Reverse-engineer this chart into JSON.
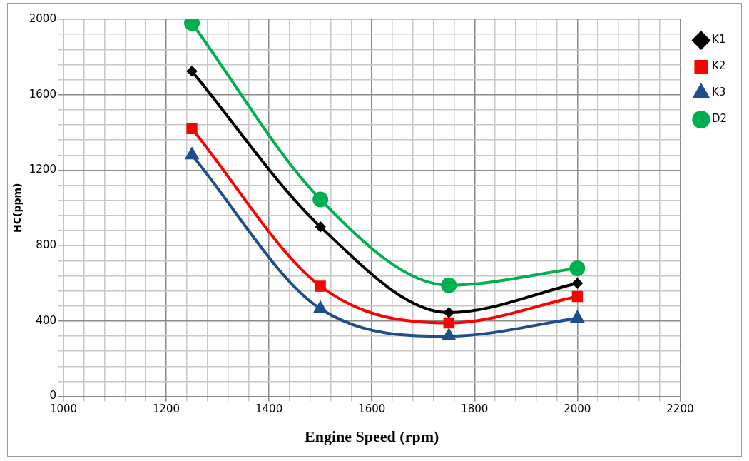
{
  "chart_data": {
    "type": "line",
    "xlabel": "Engine Speed (rpm)",
    "ylabel": "HC(ppm)",
    "x": [
      1250,
      1500,
      1750,
      2000
    ],
    "xlim": [
      1000,
      2200
    ],
    "xticks": [
      1000,
      {
        "value": 1040,
        "label": null
      },
      {
        "value": 1080,
        "label": null
      },
      {
        "value": 1120,
        "label": null
      },
      {
        "value": 1160,
        "label": null
      },
      1200,
      {
        "value": 1240,
        "label": null
      },
      {
        "value": 1280,
        "label": null
      },
      {
        "value": 1320,
        "label": null
      },
      {
        "value": 1360,
        "label": null
      },
      1400,
      {
        "value": 1440,
        "label": null
      },
      {
        "value": 1480,
        "label": null
      },
      {
        "value": 1520,
        "label": null
      },
      {
        "value": 1560,
        "label": null
      },
      1600,
      {
        "value": 1640,
        "label": null
      },
      {
        "value": 1680,
        "label": null
      },
      {
        "value": 1720,
        "label": null
      },
      {
        "value": 1760,
        "label": null
      },
      1800,
      {
        "value": 1840,
        "label": null
      },
      {
        "value": 1880,
        "label": null
      },
      {
        "value": 1920,
        "label": null
      },
      {
        "value": 1960,
        "label": null
      },
      2000,
      {
        "value": 2040,
        "label": null
      },
      {
        "value": 2080,
        "label": null
      },
      {
        "value": 2120,
        "label": null
      },
      {
        "value": 2160,
        "label": null
      },
      2200
    ],
    "ylim": [
      0,
      2000
    ],
    "yticks": [
      0,
      {
        "value": 80,
        "label": null
      },
      {
        "value": 160,
        "label": null
      },
      {
        "value": 240,
        "label": null
      },
      {
        "value": 320,
        "label": null
      },
      400,
      {
        "value": 480,
        "label": null
      },
      {
        "value": 560,
        "label": null
      },
      {
        "value": 640,
        "label": null
      },
      {
        "value": 720,
        "label": null
      },
      800,
      {
        "value": 880,
        "label": null
      },
      {
        "value": 960,
        "label": null
      },
      {
        "value": 1040,
        "label": null
      },
      {
        "value": 1120,
        "label": null
      },
      1200,
      {
        "value": 1280,
        "label": null
      },
      {
        "value": 1360,
        "label": null
      },
      {
        "value": 1440,
        "label": null
      },
      {
        "value": 1520,
        "label": null
      },
      1600,
      {
        "value": 1680,
        "label": null
      },
      {
        "value": 1760,
        "label": null
      },
      {
        "value": 1840,
        "label": null
      },
      {
        "value": 1920,
        "label": null
      },
      2000
    ],
    "grid": true,
    "legend": "right",
    "line_style": "solid",
    "series": [
      {
        "name": "K1",
        "color": "#000000",
        "marker": "diamond",
        "values": [
          1725,
          900,
          445,
          600
        ]
      },
      {
        "name": "K2",
        "color": "#ff0000",
        "marker": "square",
        "values": [
          1420,
          585,
          390,
          530
        ]
      },
      {
        "name": "K3",
        "color": "#1f4e8c",
        "marker": "triangle",
        "values": [
          1280,
          465,
          320,
          415
        ]
      },
      {
        "name": "D2",
        "color": "#00b050",
        "marker": "circle",
        "values": [
          1980,
          1045,
          590,
          680
        ]
      }
    ]
  }
}
